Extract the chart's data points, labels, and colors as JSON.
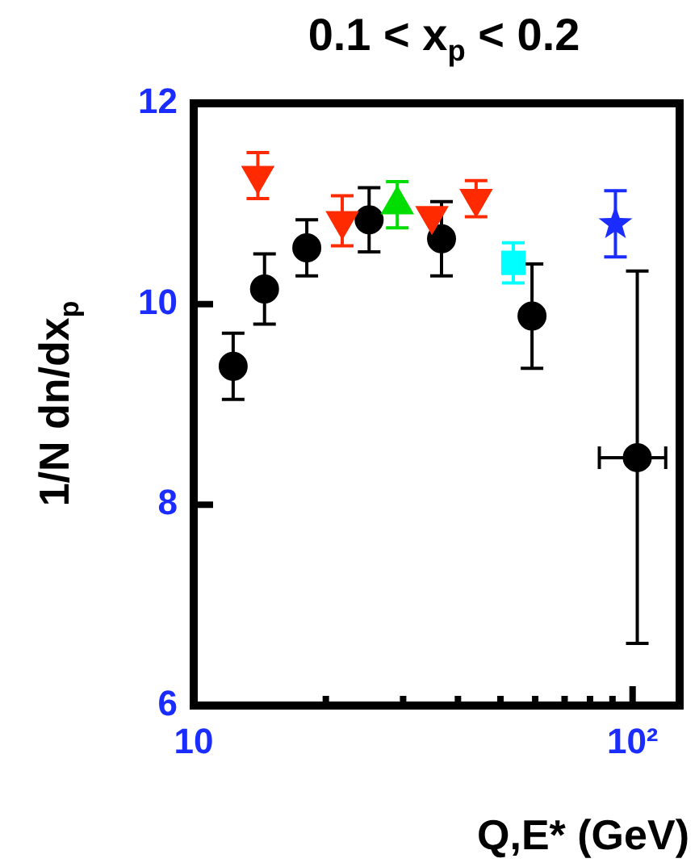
{
  "chart_data": {
    "type": "scatter",
    "title": "0.1 < x$_{p}$ < 0.2",
    "xlabel": "Q,E* (GeV)",
    "ylabel": "1/N dn/dx$_{p}$",
    "log": "x",
    "xlim": [
      10,
      128
    ],
    "ylim": [
      6,
      12
    ],
    "xticks": [
      10,
      {
        "value": 20,
        "label": null
      },
      {
        "value": 30,
        "label": null
      },
      {
        "value": 40,
        "label": null
      },
      {
        "value": 50,
        "label": null
      },
      {
        "value": 60,
        "label": null
      },
      {
        "value": 70,
        "label": null
      },
      {
        "value": 80,
        "label": null
      },
      {
        "value": 90,
        "label": null
      },
      {
        "value": 100,
        "label": "10²"
      }
    ],
    "yticks": [
      6,
      8,
      10,
      12
    ],
    "grid": false,
    "legend": false,
    "series": [
      {
        "color": "#000000",
        "marker": "circle",
        "x": [
          12.3,
          14.5,
          18.1,
          25.1,
          36.7,
          59,
          102.5
        ],
        "values": [
          9.38,
          10.15,
          10.56,
          10.84,
          10.65,
          9.88,
          8.47
        ],
        "errors": [
          0.33,
          0.35,
          0.28,
          0.32,
          0.37,
          0.52,
          [
            6.62,
            10.33
          ]
        ],
        "xerrors": [
          null,
          null,
          null,
          null,
          null,
          null,
          [
            84,
            119
          ]
        ]
      },
      {
        "color": "#ff2a00",
        "marker": "triangle-down",
        "x": [
          14.0,
          21.8,
          34.9,
          44
        ],
        "values": [
          11.28,
          10.83,
          10.88,
          11.05
        ],
        "errors": [
          0.23,
          0.25,
          null,
          0.18
        ]
      },
      {
        "color": "#00dd00",
        "marker": "triangle",
        "x": [
          29.1
        ],
        "values": [
          10.99
        ],
        "errors": [
          0.23
        ]
      },
      {
        "color": "#00ffff",
        "marker": "square",
        "x": [
          53.5
        ],
        "values": [
          10.41
        ],
        "errors": [
          0.2
        ]
      },
      {
        "color": "#1a2cff",
        "marker": "star",
        "x": [
          91.4
        ],
        "values": [
          10.8
        ],
        "errors": [
          0.33
        ]
      }
    ]
  }
}
